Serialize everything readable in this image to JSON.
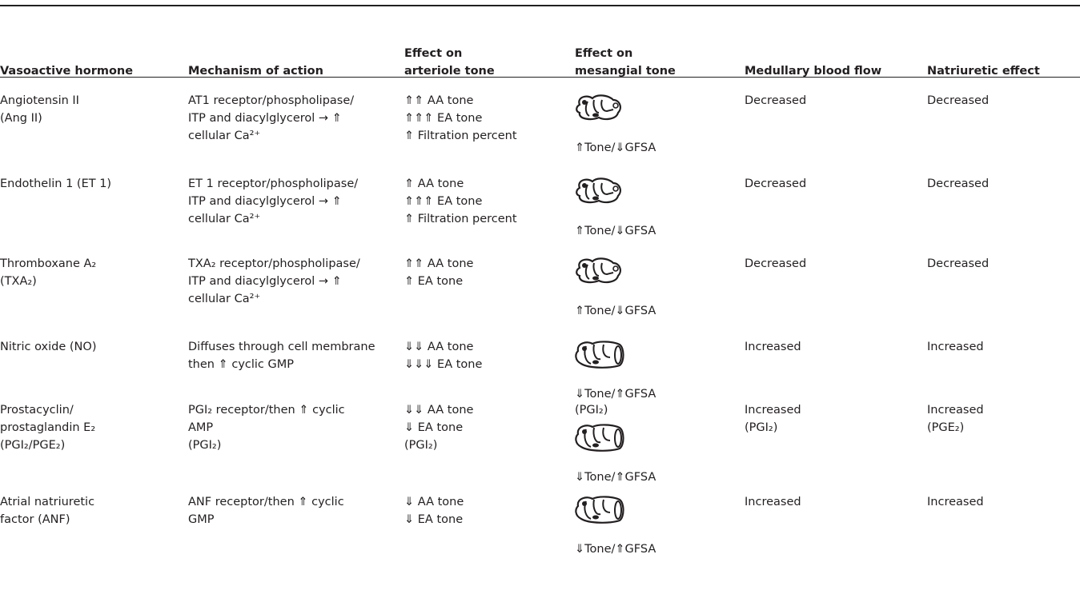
{
  "table": {
    "header": [
      [
        "Vasoactive hormone"
      ],
      [
        "Mechanism of action"
      ],
      [
        "Effect on",
        "arteriole tone"
      ],
      [
        "Effect on",
        "mesangial tone"
      ],
      [
        "Medullary blood flow"
      ],
      [
        "Natriuretic effect"
      ]
    ],
    "rows": [
      [
        [
          "Angiotensin II",
          "(Ang II)"
        ],
        [
          "AT1 receptor/phospholipase/",
          "ITP and diacylglycerol → ⇑",
          "cellular Ca²⁺"
        ],
        [
          "⇑⇑ AA tone",
          "⇑⇑⇑ EA tone",
          "⇑ Filtration percent"
        ],
        {
          "label": "⇑Tone/⇓GFSA"
        },
        [
          "Decreased"
        ],
        [
          "Decreased"
        ]
      ],
      [
        [
          "Endothelin 1 (ET 1)"
        ],
        [
          "ET 1 receptor/phospholipase/",
          "ITP and diacylglycerol → ⇑",
          "cellular Ca²⁺"
        ],
        [
          "⇑ AA tone",
          "⇑⇑⇑ EA tone",
          "⇑ Filtration percent"
        ],
        {
          "label": "⇑Tone/⇓GFSA"
        },
        [
          "Decreased"
        ],
        [
          "Decreased"
        ]
      ],
      [
        [
          "Thromboxane A₂",
          "(TXA₂)"
        ],
        [
          "TXA₂ receptor/phospholipase/",
          "ITP and diacylglycerol → ⇑",
          "cellular Ca²⁺"
        ],
        [
          "⇑⇑ AA tone",
          "⇑ EA tone"
        ],
        {
          "label": "⇑Tone/⇓GFSA"
        },
        [
          "Decreased"
        ],
        [
          "Decreased"
        ]
      ],
      [
        [
          "Nitric oxide (NO)"
        ],
        [
          "Diffuses through cell membrane",
          "then ⇑ cyclic GMP"
        ],
        [
          "⇓⇓ AA tone",
          "⇓⇓⇓ EA tone"
        ],
        {
          "label": "⇓Tone/⇑GFSA"
        },
        [
          "Increased"
        ],
        [
          "Increased"
        ]
      ],
      [
        [
          "Prostacyclin/",
          "prostaglandin E₂",
          "(PGI₂/PGE₂)"
        ],
        [
          "PGI₂ receptor/then ⇑ cyclic",
          "AMP",
          "(PGI₂)"
        ],
        [
          "⇓⇓ AA tone",
          "⇓ EA tone",
          "(PGI₂)"
        ],
        {
          "note": "(PGI₂)",
          "label": "⇓Tone/⇑GFSA"
        },
        [
          "Increased",
          "(PGI₂)"
        ],
        [
          "Increased",
          "(PGE₂)"
        ]
      ],
      [
        [
          "Atrial natriuretic",
          "factor (ANF)"
        ],
        [
          "ANF receptor/then ⇑ cyclic",
          "GMP"
        ],
        [
          "⇓ AA tone",
          "⇓ EA tone"
        ],
        {
          "label": "⇓Tone/⇑GFSA"
        },
        [
          "Increased"
        ],
        [
          "Increased"
        ]
      ]
    ]
  }
}
